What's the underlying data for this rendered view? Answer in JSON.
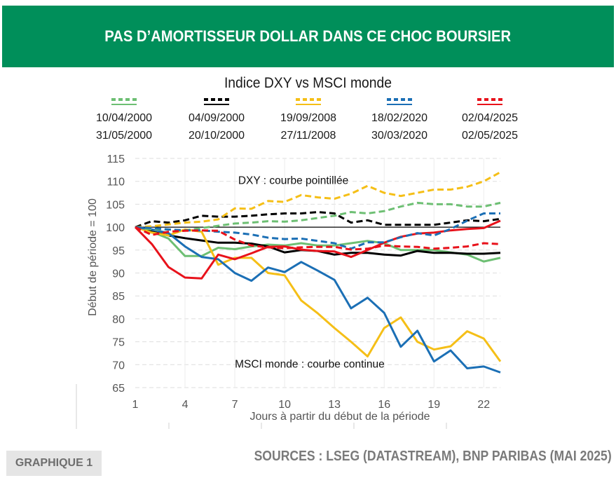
{
  "header": {
    "title": "PAS D’AMORTISSEUR DOLLAR DANS CE CHOC BOURSIER",
    "banner_color": "#008f5a"
  },
  "footer": {
    "badge": "GRAPHIQUE 1",
    "source": "SOURCES : LSEG (DATASTREAM), BNP PARIBAS (MAI 2025)"
  },
  "chart_data": {
    "type": "line",
    "title": "Indice DXY vs MSCI monde",
    "xlabel": "Jours à partir du début de la période",
    "ylabel": "Début de période = 100",
    "ylim": [
      65,
      115
    ],
    "xlim": [
      1,
      23
    ],
    "yticks": [
      65,
      70,
      75,
      80,
      85,
      90,
      95,
      100,
      105,
      110,
      115
    ],
    "xticks": [
      1,
      4,
      7,
      10,
      13,
      16,
      19,
      22
    ],
    "grid": true,
    "reference_line": 100,
    "annotations": [
      {
        "text": "DXY : courbe pointillée",
        "x": 7.2,
        "y": 110
      },
      {
        "text": "MSCI  monde : courbe continue",
        "x": 7.0,
        "y": 70
      }
    ],
    "legend": [
      {
        "color": "#6dbf73",
        "start": "10/04/2000",
        "end": "31/05/2000"
      },
      {
        "color": "#000000",
        "start": "04/09/2000",
        "end": "20/10/2000"
      },
      {
        "color": "#f5bf17",
        "start": "19/09/2008",
        "end": "27/11/2008"
      },
      {
        "color": "#1b6fb5",
        "start": "18/02/2020",
        "end": "30/03/2020"
      },
      {
        "color": "#e8121b",
        "start": "02/04/2025",
        "end": "02/05/2025"
      }
    ],
    "x": [
      1,
      2,
      3,
      4,
      5,
      6,
      7,
      8,
      9,
      10,
      11,
      12,
      13,
      14,
      15,
      16,
      17,
      18,
      19,
      20,
      21,
      22,
      23
    ],
    "series": [
      {
        "name": "MSCI monde 10/04/2000–31/05/2000",
        "color": "#6dbf73",
        "style": "solid",
        "values": [
          100,
          99,
          97.5,
          93.7,
          93.7,
          95.5,
          95.2,
          95.8,
          96.2,
          96,
          96.5,
          96,
          96,
          96.5,
          97,
          96.5,
          95,
          95,
          95,
          94.5,
          94,
          92.5,
          93.3
        ]
      },
      {
        "name": "DXY 10/04/2000–31/05/2000",
        "color": "#6dbf73",
        "style": "dashed",
        "values": [
          100,
          99.5,
          99.5,
          99.3,
          99.8,
          100.3,
          100.8,
          101,
          101.3,
          101.2,
          101.5,
          102,
          102.5,
          103.3,
          103,
          103.5,
          104.5,
          105.3,
          105,
          105,
          104.5,
          104.5,
          105.3
        ]
      },
      {
        "name": "MSCI monde 04/09/2000–20/10/2000",
        "color": "#000000",
        "style": "solid",
        "values": [
          100,
          99,
          98.2,
          97.6,
          97.1,
          96.6,
          96.6,
          96.4,
          95.8,
          94.5,
          95,
          94.8,
          94,
          94.4,
          94.4,
          94,
          93.8,
          94.8,
          94.4,
          94.4,
          94.2,
          94.2,
          94.4
        ]
      },
      {
        "name": "DXY 04/09/2000–20/10/2000",
        "color": "#000000",
        "style": "dashed",
        "values": [
          100,
          101.3,
          101,
          101.5,
          102.5,
          102.3,
          102.3,
          102.5,
          102.8,
          103,
          103,
          103.3,
          103,
          101,
          101.5,
          100.5,
          100.5,
          100.5,
          100.5,
          101,
          101.5,
          101.3,
          101.8
        ]
      },
      {
        "name": "MSCI monde 19/09/2008–27/11/2008",
        "color": "#f5bf17",
        "style": "solid",
        "values": [
          100,
          98.8,
          98.2,
          99.5,
          99,
          91.8,
          93.3,
          93.3,
          90,
          89.5,
          84,
          81.2,
          78,
          75,
          71.8,
          78,
          80.3,
          75,
          73.3,
          74,
          77.3,
          75.7,
          70.7
        ]
      },
      {
        "name": "DXY 19/09/2008–27/11/2008",
        "color": "#f5bf17",
        "style": "dashed",
        "values": [
          100,
          100.2,
          100.6,
          101,
          101.2,
          101.7,
          104.1,
          104,
          105.7,
          105.5,
          107,
          106.5,
          106.2,
          107.3,
          109,
          107.5,
          106.8,
          107.5,
          108.2,
          108.2,
          108.8,
          110,
          112
        ]
      },
      {
        "name": "MSCI monde 18/02/2020–30/03/2020",
        "color": "#1b6fb5",
        "style": "solid",
        "values": [
          100,
          99.5,
          98.7,
          95.8,
          93.5,
          93,
          90,
          88.3,
          91.2,
          90.2,
          92.4,
          90.5,
          88.5,
          82.3,
          84.6,
          81.3,
          73.9,
          77.4,
          70.7,
          73.1,
          69.2,
          69.6,
          68.3
        ]
      },
      {
        "name": "DXY 18/02/2020–30/03/2020",
        "color": "#1b6fb5",
        "style": "dashed",
        "values": [
          100,
          99.8,
          99.5,
          99.3,
          99.3,
          99,
          98.8,
          98.4,
          97.7,
          97.4,
          97.5,
          97,
          96.5,
          95.3,
          96.7,
          96.7,
          97.8,
          98.7,
          98.2,
          99.6,
          101.4,
          103,
          103
        ]
      },
      {
        "name": "MSCI monde 02/04/2025–02/05/2025",
        "color": "#e8121b",
        "style": "solid",
        "values": [
          100,
          96.3,
          91.3,
          89,
          88.8,
          94,
          93,
          94.3,
          95.7,
          95.8,
          95.1,
          94.8,
          94.7,
          93.5,
          95,
          96.6,
          97.9,
          98.6,
          98.8,
          99.3,
          99.6,
          99.8,
          101.4
        ]
      },
      {
        "name": "DXY 02/04/2025–02/05/2025",
        "color": "#e8121b",
        "style": "dashed",
        "values": [
          100,
          98.3,
          99,
          99.2,
          99.3,
          99.2,
          97.3,
          96,
          95.6,
          95.4,
          95.6,
          95.7,
          95.7,
          95.1,
          95.3,
          96,
          95.8,
          95.7,
          95.3,
          95.5,
          95.8,
          96.5,
          96.3
        ]
      }
    ]
  }
}
